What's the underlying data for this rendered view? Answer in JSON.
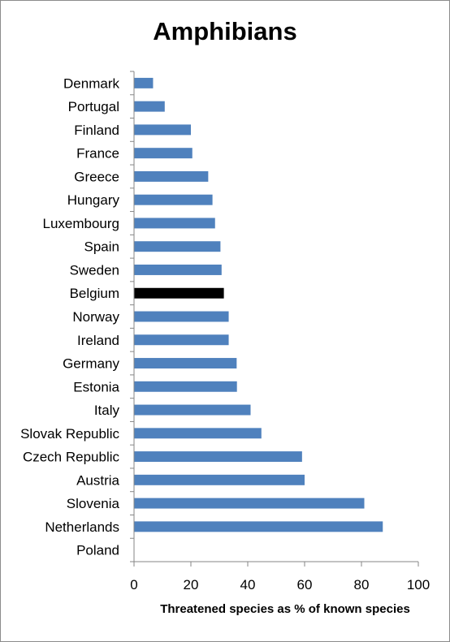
{
  "chart_data": {
    "type": "bar",
    "orientation": "horizontal",
    "title": "Amphibians",
    "xlabel": "Threatened species as % of known species",
    "ylabel": "",
    "xlim": [
      0,
      100
    ],
    "xticks": [
      0,
      20,
      40,
      60,
      80,
      100
    ],
    "grid": false,
    "legend": "none",
    "categories": [
      "Denmark",
      "Portugal",
      "Finland",
      "France",
      "Greece",
      "Hungary",
      "Luxembourg",
      "Spain",
      "Sweden",
      "Belgium",
      "Norway",
      "Ireland",
      "Germany",
      "Estonia",
      "Italy",
      "Slovak Republic",
      "Czech Republic",
      "Austria",
      "Slovenia",
      "Netherlands",
      "Poland"
    ],
    "values": [
      6.7,
      10.8,
      20,
      20.5,
      26.1,
      27.6,
      28.5,
      30.4,
      30.8,
      31.6,
      33.3,
      33.3,
      36.1,
      36.2,
      41,
      44.8,
      59.1,
      60,
      81,
      87.5,
      0
    ],
    "colors": {
      "default": "#4F81BD",
      "highlight": "#000000",
      "axis": "#868686"
    },
    "highlight_category": "Belgium"
  }
}
